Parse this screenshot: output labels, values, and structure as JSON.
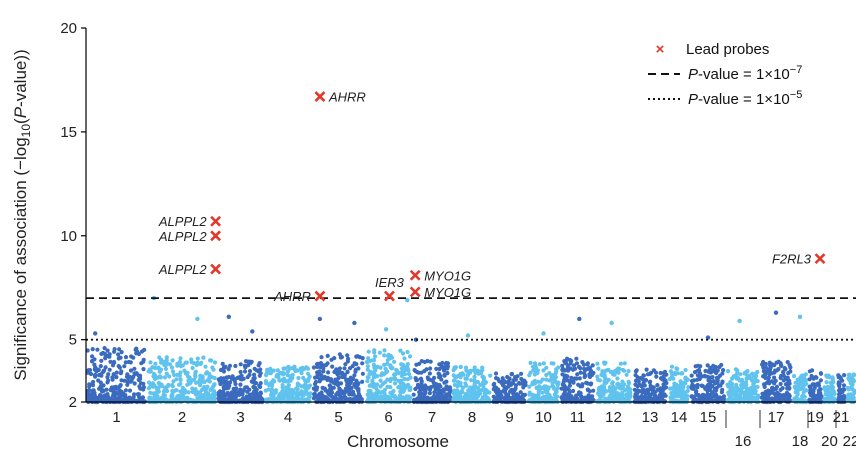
{
  "chart_data": {
    "type": "scatter",
    "title": "",
    "xlabel": "Chromosome",
    "ylabel_parts": [
      "Significance of association (−log",
      "10",
      "(",
      "P",
      "-value))"
    ],
    "ylim": [
      2,
      20
    ],
    "yticks": [
      2,
      5,
      10,
      15,
      20
    ],
    "grid": false,
    "legend_placement": "top-right",
    "colors": {
      "dark": "#3a6bbf",
      "light": "#5fc3ee",
      "lead": "#e3372c",
      "threshold": "#111111"
    },
    "chromosomes": [
      {
        "label": "1",
        "height": 4.6
      },
      {
        "label": "2",
        "height": 4.2
      },
      {
        "label": "3",
        "height": 4.0
      },
      {
        "label": "4",
        "height": 3.7
      },
      {
        "label": "5",
        "height": 4.3
      },
      {
        "label": "6",
        "height": 4.5
      },
      {
        "label": "7",
        "height": 4.0
      },
      {
        "label": "8",
        "height": 3.7
      },
      {
        "label": "9",
        "height": 3.4
      },
      {
        "label": "10",
        "height": 3.9
      },
      {
        "label": "11",
        "height": 4.1
      },
      {
        "label": "12",
        "height": 3.9
      },
      {
        "label": "13",
        "height": 3.6
      },
      {
        "label": "14",
        "height": 3.7
      },
      {
        "label": "15",
        "height": 3.8
      },
      {
        "label": "16",
        "height": 3.6
      },
      {
        "label": "17",
        "height": 4.0
      },
      {
        "label": "18",
        "height": 3.4
      },
      {
        "label": "19",
        "height": 3.6
      },
      {
        "label": "20",
        "height": 3.3
      },
      {
        "label": "21",
        "height": 3.3
      },
      {
        "label": "22",
        "height": 3.4
      }
    ],
    "thresholds": [
      {
        "name": "P-value = 1×10⁻⁷",
        "prefix": "P",
        "text": "-value = 1×10",
        "exp": "−7",
        "y": 7,
        "style": "dashed"
      },
      {
        "name": "P-value = 1×10⁻⁵",
        "prefix": "P",
        "text": "-value = 1×10",
        "exp": "−5",
        "y": 5,
        "style": "dotted"
      }
    ],
    "legend": {
      "lead_label": "Lead probes"
    },
    "lead_probes": [
      {
        "gene": "AHRR",
        "chr": "5",
        "pos": 0.15,
        "y": 16.7,
        "side": "right"
      },
      {
        "gene": "ALPPL2",
        "chr": "2",
        "pos": 0.98,
        "y": 10.7,
        "side": "left"
      },
      {
        "gene": "ALPPL2",
        "chr": "2",
        "pos": 0.98,
        "y": 10.0,
        "side": "left"
      },
      {
        "gene": "ALPPL2",
        "chr": "2",
        "pos": 0.98,
        "y": 8.4,
        "side": "left"
      },
      {
        "gene": "AHRR",
        "chr": "5",
        "pos": 0.15,
        "y": 7.1,
        "side": "left"
      },
      {
        "gene": "IER3",
        "chr": "6",
        "pos": 0.52,
        "y": 7.1,
        "side": "above"
      },
      {
        "gene": "MYO1G",
        "chr": "7",
        "pos": 0.08,
        "y": 8.1,
        "side": "right"
      },
      {
        "gene": "MYO1G",
        "chr": "7",
        "pos": 0.08,
        "y": 7.3,
        "side": "right"
      },
      {
        "gene": "F2RL3",
        "chr": "19",
        "pos": 0.8,
        "y": 8.9,
        "side": "left"
      }
    ],
    "notable_points": [
      {
        "chr": "1",
        "pos": 0.15,
        "y": 5.3
      },
      {
        "chr": "2",
        "pos": 0.72,
        "y": 6.0
      },
      {
        "chr": "3",
        "pos": 0.25,
        "y": 6.1
      },
      {
        "chr": "3",
        "pos": 0.75,
        "y": 5.4
      },
      {
        "chr": "5",
        "pos": 0.15,
        "y": 6.0
      },
      {
        "chr": "5",
        "pos": 0.8,
        "y": 5.8
      },
      {
        "chr": "6",
        "pos": 0.45,
        "y": 5.5
      },
      {
        "chr": "6",
        "pos": 0.9,
        "y": 6.9
      },
      {
        "chr": "7",
        "pos": 0.1,
        "y": 5.0
      },
      {
        "chr": "8",
        "pos": 0.4,
        "y": 5.2
      },
      {
        "chr": "10",
        "pos": 0.5,
        "y": 5.3
      },
      {
        "chr": "11",
        "pos": 0.55,
        "y": 6.0
      },
      {
        "chr": "12",
        "pos": 0.45,
        "y": 5.8
      },
      {
        "chr": "15",
        "pos": 0.5,
        "y": 5.1
      },
      {
        "chr": "16",
        "pos": 0.4,
        "y": 5.9
      },
      {
        "chr": "17",
        "pos": 0.5,
        "y": 6.3
      },
      {
        "chr": "18",
        "pos": 0.5,
        "y": 6.1
      },
      {
        "chr": "2",
        "pos": 0.1,
        "y": 7.0
      }
    ]
  }
}
